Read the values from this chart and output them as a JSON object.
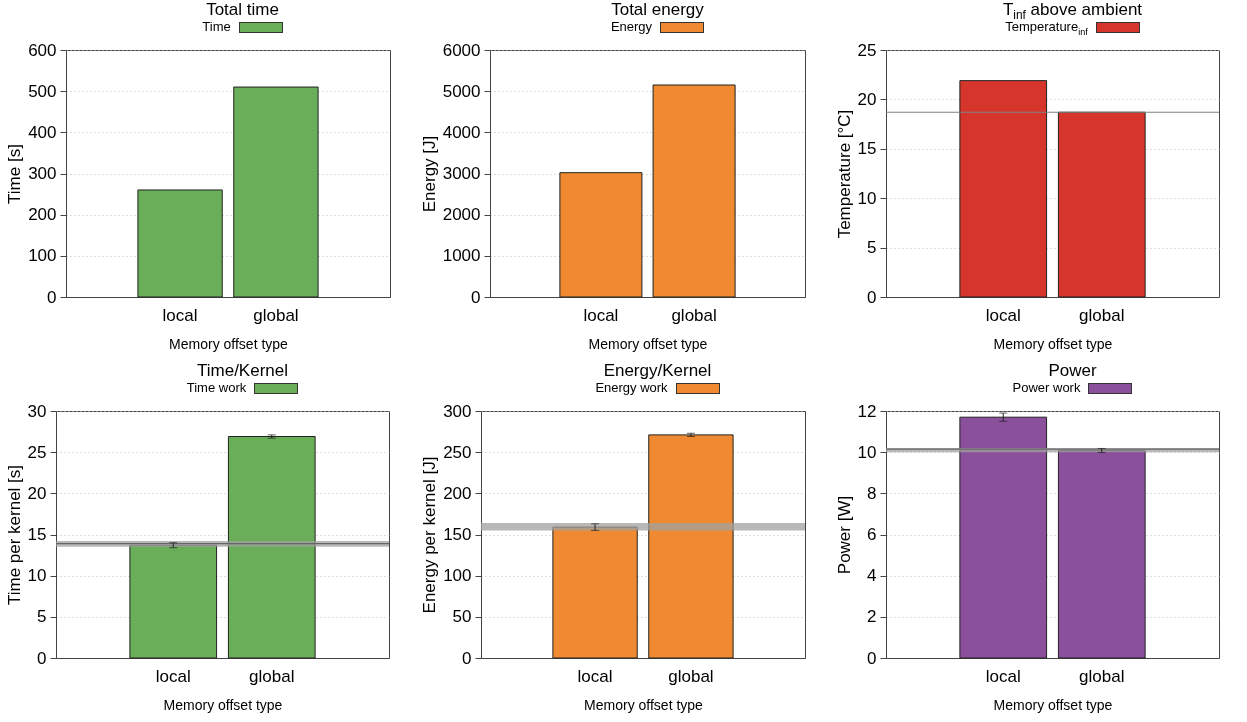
{
  "chart_data": [
    {
      "type": "bar",
      "title": "Total time",
      "xlabel": "Memory offset type",
      "ylabel": "Time [s]",
      "categories": [
        "local",
        "global"
      ],
      "series": [
        {
          "name": "Time",
          "color": "#6aae5a",
          "values": [
            260,
            510
          ]
        }
      ],
      "ylim": [
        0,
        600
      ],
      "yticks": [
        0,
        100,
        200,
        300,
        400,
        500,
        600
      ],
      "grid": "y",
      "legend": "top"
    },
    {
      "type": "bar",
      "title": "Total energy",
      "xlabel": "Memory offset type",
      "ylabel": "Energy [J]",
      "categories": [
        "local",
        "global"
      ],
      "series": [
        {
          "name": "Energy",
          "color": "#ef8a33",
          "values": [
            3020,
            5150
          ]
        }
      ],
      "ylim": [
        0,
        6000
      ],
      "yticks": [
        0,
        1000,
        2000,
        3000,
        4000,
        5000,
        6000
      ],
      "grid": "y",
      "legend": "top"
    },
    {
      "type": "bar",
      "title": "T$_{inf}$ above ambient",
      "xlabel": "Memory offset type",
      "ylabel": "Temperature [°C]",
      "categories": [
        "local",
        "global"
      ],
      "series": [
        {
          "name": "Temperature$_{inf}$",
          "color": "#d6352c",
          "values": [
            21.9,
            18.7
          ]
        }
      ],
      "ylim": [
        0,
        25
      ],
      "yticks": [
        0,
        5,
        10,
        15,
        20,
        25
      ],
      "grid": "y",
      "legend": "top",
      "ref_lines": [
        {
          "axis": "y",
          "value": 18.7,
          "color": "#808080"
        }
      ]
    },
    {
      "type": "bar",
      "title": "Time/Kernel",
      "xlabel": "Memory offset type",
      "ylabel": "Time per kernel [s]",
      "categories": [
        "local",
        "global"
      ],
      "series": [
        {
          "name": "Time work",
          "color": "#6aae5a",
          "values": [
            13.7,
            26.9
          ],
          "errors": [
            0.3,
            0.2
          ]
        }
      ],
      "ylim": [
        0,
        30
      ],
      "yticks": [
        0,
        5,
        10,
        15,
        20,
        25,
        30
      ],
      "grid": "y",
      "legend": "top",
      "ref_lines": [
        {
          "axis": "y",
          "value": 13.9,
          "color": "#666666"
        }
      ],
      "bands": [
        {
          "axis": "y",
          "from": 13.5,
          "to": 14.2,
          "color": "#a0a0a0"
        }
      ]
    },
    {
      "type": "bar",
      "title": "Energy/Kernel",
      "xlabel": "Memory offset type",
      "ylabel": "Energy per kernel [J]",
      "categories": [
        "local",
        "global"
      ],
      "series": [
        {
          "name": "Energy work",
          "color": "#ef8a33",
          "values": [
            159,
            271
          ],
          "errors": [
            4,
            2
          ]
        }
      ],
      "ylim": [
        0,
        300
      ],
      "yticks": [
        0,
        50,
        100,
        150,
        200,
        250,
        300
      ],
      "grid": "y",
      "legend": "top",
      "bands": [
        {
          "axis": "y",
          "from": 155,
          "to": 164,
          "color": "#a0a0a0"
        }
      ]
    },
    {
      "type": "bar",
      "title": "Power",
      "xlabel": "Memory offset type",
      "ylabel": "Power [W]",
      "categories": [
        "local",
        "global"
      ],
      "series": [
        {
          "name": "Power work",
          "color": "#8b509c",
          "values": [
            11.7,
            10.08
          ],
          "errors": [
            0.2,
            0.1
          ]
        }
      ],
      "ylim": [
        0,
        12
      ],
      "yticks": [
        0,
        2,
        4,
        6,
        8,
        10,
        12
      ],
      "grid": "y",
      "legend": "top",
      "ref_lines": [
        {
          "axis": "y",
          "value": 10.15,
          "color": "#666666"
        }
      ],
      "bands": [
        {
          "axis": "y",
          "from": 10.0,
          "to": 10.2,
          "color": "#a0a0a0"
        }
      ]
    }
  ]
}
